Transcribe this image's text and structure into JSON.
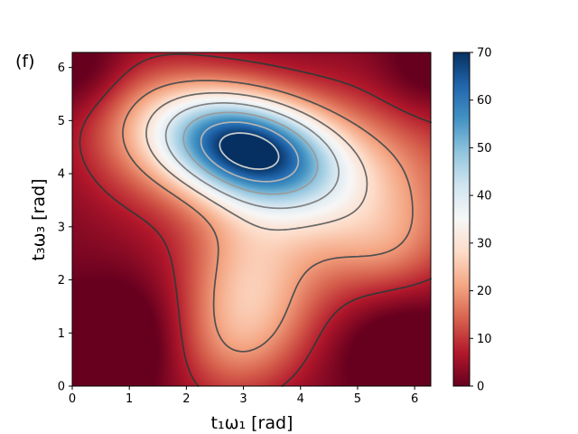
{
  "panel_label": "(f)",
  "chart_data": {
    "type": "heatmap",
    "title": "",
    "xlabel": "t₁ω₁ [rad]",
    "ylabel": "t₃ω₃ [rad]",
    "xlim": [
      0,
      6.283
    ],
    "ylim": [
      0,
      6.283
    ],
    "x_ticks": [
      0,
      1,
      2,
      3,
      4,
      5,
      6
    ],
    "y_ticks": [
      0,
      1,
      2,
      3,
      4,
      5,
      6
    ],
    "colormap": "RdBu",
    "colorbar": {
      "vmin": 0,
      "vmax": 70,
      "ticks": [
        0,
        10,
        20,
        30,
        40,
        50,
        60,
        70
      ],
      "low_color": "#67001f",
      "mid_color": "#f7f7f7",
      "high_color": "#053061"
    },
    "peak": {
      "x": 3.0,
      "y": 4.5,
      "value": 70
    },
    "secondary_max": {
      "x": 2.95,
      "y": 1.0,
      "value": 22
    },
    "minima": [
      {
        "x": 0.8,
        "y": 0.8,
        "value": 0
      },
      {
        "x": 5.8,
        "y": 0.7,
        "value": 0
      },
      {
        "x": 0.3,
        "y": 5.6,
        "value": 3
      },
      {
        "x": 6.0,
        "y": 5.8,
        "value": 3
      }
    ],
    "contour_levels": [
      8,
      20,
      30,
      40,
      50,
      60,
      69
    ]
  }
}
